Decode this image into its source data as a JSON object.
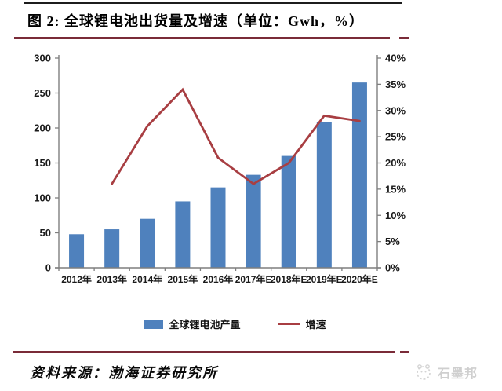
{
  "header": {
    "title": "图 2:  全球锂电池出货量及增速（单位：Gwh，%）"
  },
  "footer": {
    "source_label": "资料来源：渤海证券研究所",
    "watermark": "石墨邦"
  },
  "colors": {
    "bar": "#4f81bd",
    "line": "#a83e42",
    "rule": "#7a2b38",
    "axis": "#7f7f7f",
    "label": "#1a1a1a"
  },
  "chart_data": {
    "type": "bar",
    "title": "全球锂电池出货量及增速",
    "unit": "Gwh，%",
    "categories": [
      "2012年",
      "2013年",
      "2014年",
      "2015年",
      "2016年",
      "2017年E",
      "2018年E",
      "2019年E",
      "2020年E"
    ],
    "series": [
      {
        "name": "全球锂电池产量",
        "type": "bar",
        "axis": "left",
        "color": "#4f81bd",
        "values": [
          48,
          55,
          70,
          95,
          115,
          133,
          160,
          208,
          265
        ]
      },
      {
        "name": "增速",
        "type": "line",
        "axis": "right",
        "color": "#a83e42",
        "values": [
          null,
          16,
          27,
          34,
          21,
          16,
          20,
          29,
          28
        ]
      }
    ],
    "left_axis": {
      "min": 0,
      "max": 300,
      "step": 50,
      "ticks": [
        0,
        50,
        100,
        150,
        200,
        250,
        300
      ]
    },
    "right_axis": {
      "min": 0,
      "max": 40,
      "step": 5,
      "tick_labels": [
        "0%",
        "5%",
        "10%",
        "15%",
        "20%",
        "25%",
        "30%",
        "35%",
        "40%"
      ]
    },
    "grid": false,
    "legend_position": "bottom"
  }
}
